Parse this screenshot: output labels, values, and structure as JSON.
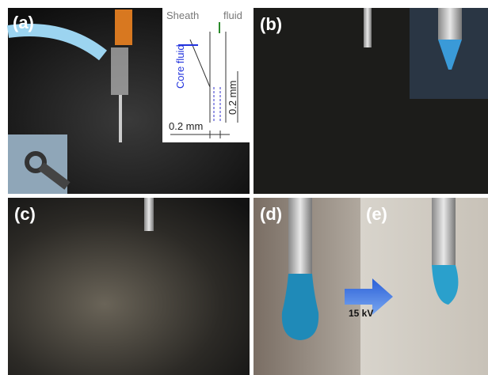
{
  "panels": {
    "a": {
      "label": "(a)",
      "schematic": {
        "sheath": "Sheath",
        "fluid": "fluid",
        "core": "Core fluid",
        "dim_vertical": "0.2 mm",
        "dim_horizontal": "0.2 mm"
      }
    },
    "b": {
      "label": "(b)"
    },
    "c": {
      "label": "(c)"
    },
    "d": {
      "label": "(d)"
    },
    "e": {
      "label": "(e)"
    },
    "voltage": "15 kV"
  }
}
